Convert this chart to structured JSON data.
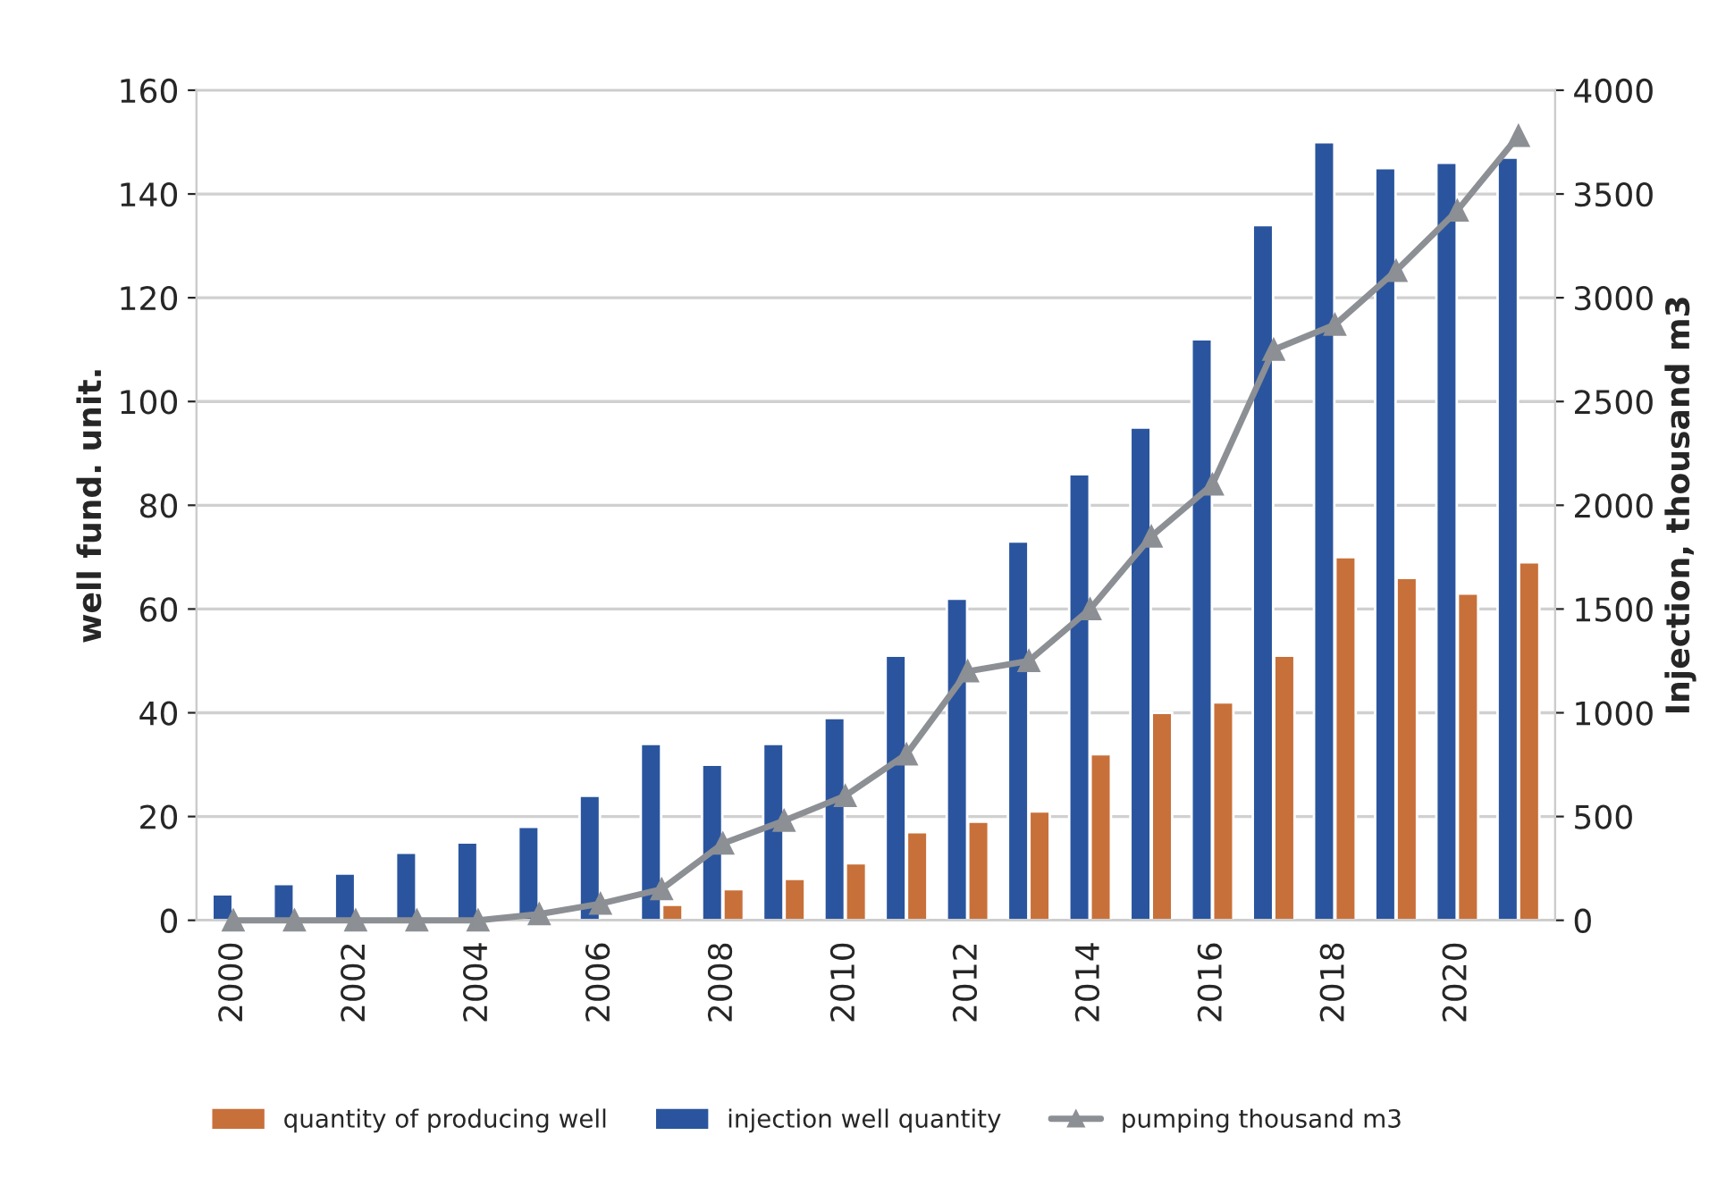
{
  "chart_data": {
    "type": "bar",
    "ylabel": "well fund. unit.",
    "y2label": "Injection, thousand m3",
    "categories": [
      "2000",
      null,
      "2002",
      null,
      "2004",
      null,
      "2006",
      null,
      "2008",
      null,
      "2010",
      null,
      "2012",
      null,
      "2014",
      null,
      "2016",
      null,
      "2018",
      null,
      "2020",
      null
    ],
    "series": [
      {
        "name": "quantity of producing well",
        "color": "#c8703a",
        "values": [
          null,
          null,
          null,
          null,
          null,
          null,
          null,
          3,
          6,
          8,
          11,
          17,
          19,
          21,
          32,
          40,
          42,
          51,
          70,
          66,
          63,
          69
        ]
      },
      {
        "name": "injection well quantity",
        "color": "#2a559e",
        "values": [
          5,
          7,
          9,
          13,
          15,
          18,
          24,
          34,
          30,
          34,
          39,
          51,
          62,
          73,
          86,
          95,
          112,
          134,
          150,
          145,
          146,
          147
        ]
      },
      {
        "name": "pumping thousand m3",
        "type": "line",
        "axis": "y2",
        "color": "#8c8f94",
        "marker": "triangle",
        "values": [
          0,
          0,
          0,
          0,
          0,
          30,
          80,
          150,
          370,
          480,
          600,
          800,
          1200,
          1250,
          1500,
          1850,
          2100,
          2750,
          2870,
          3130,
          3420,
          3780
        ]
      }
    ],
    "ylim": [
      0,
      160
    ],
    "yticks": [
      0,
      20,
      40,
      60,
      80,
      100,
      120,
      140,
      160
    ],
    "y2lim": [
      0,
      4000
    ],
    "y2ticks": [
      0,
      500,
      1000,
      1500,
      2000,
      2500,
      3000,
      3500,
      4000
    ],
    "grid": "y",
    "legend": "bottom"
  }
}
